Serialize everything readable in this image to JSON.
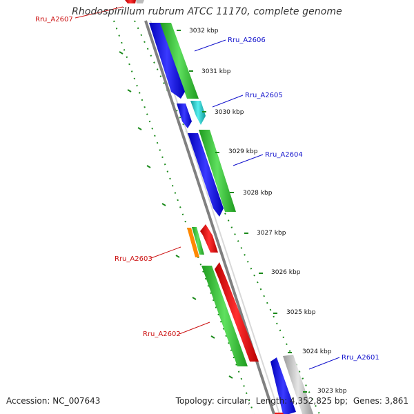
{
  "title": "Rhodospirillum rubrum ATCC 11170, complete genome",
  "footer": {
    "accession_label": "Accession:",
    "accession": "NC_007643",
    "topology_label": "Topology:",
    "topology": "circular",
    "length_label": "Length:",
    "length": "4,352,825 bp",
    "genes_label": "Genes:",
    "genes": "3,861"
  },
  "colors": {
    "backbone": "#808080",
    "forward_green": "#33cc33",
    "reverse_blue": "#1a1aee",
    "cyan": "#22cccc",
    "red": "#ee1111",
    "orange": "#ff8800",
    "gray_feature": "#bbbbbb",
    "dotted_ring": "#1a8a1a",
    "label_blue": "#1111cc",
    "label_red": "#cc1111"
  },
  "scale_ticks": [
    "3032 kbp",
    "3031 kbp",
    "3030 kbp",
    "3029 kbp",
    "3028 kbp",
    "3027 kbp",
    "3026 kbp",
    "3025 kbp",
    "3024 kbp",
    "3023 kbp"
  ],
  "gene_labels": [
    {
      "name": "Rru_A2607",
      "color": "red"
    },
    {
      "name": "Rru_A2606",
      "color": "blue"
    },
    {
      "name": "Rru_A2605",
      "color": "blue"
    },
    {
      "name": "Rru_A2604",
      "color": "blue"
    },
    {
      "name": "Rru_A2603",
      "color": "red"
    },
    {
      "name": "Rru_A2602",
      "color": "red"
    },
    {
      "name": "Rru_A2601",
      "color": "blue"
    }
  ]
}
